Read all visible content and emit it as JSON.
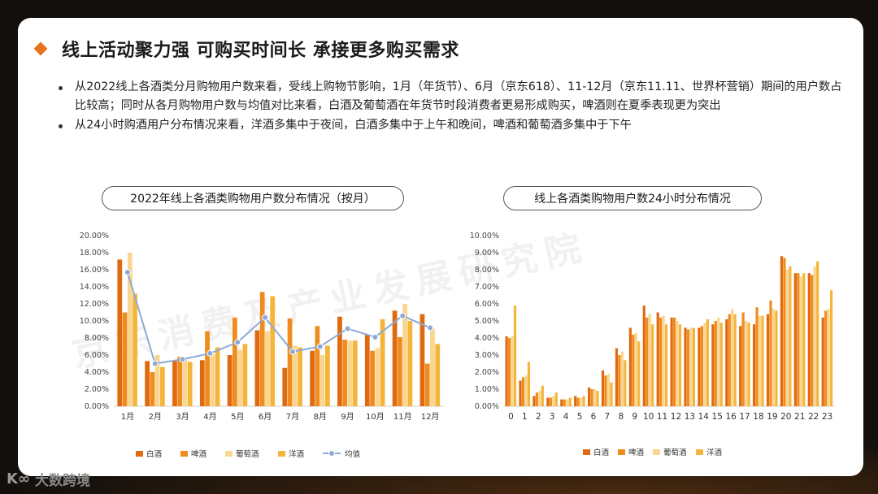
{
  "title": "线上活动聚力强 可购买时间长 承接更多购买需求",
  "bullets": [
    "从2022线上各酒类分月购物用户数来看，受线上购物节影响，1月（年货节）、6月（京东618）、11-12月（京东11.11、世界杯营销）期间的用户数占比较高；同时从各月购物用户数与均值对比来看，白酒及葡萄酒在年货节时段消费者更易形成购买，啤酒则在夏季表现更为突出",
    "从24小时购酒用户分布情况来看，洋酒多集中于夜间，白酒多集中于上午和晚间，啤酒和葡萄酒多集中于下午"
  ],
  "watermark": "京东消费及产业发展研究院",
  "logo": {
    "mark": "K∞",
    "text": "大数跨境"
  },
  "colors": {
    "baijiu": "#e06a10",
    "pijiu": "#f08c1e",
    "putao": "#fad590",
    "yangjiu": "#f5b53b",
    "avg": "#8ea9d8"
  },
  "chart_data": [
    {
      "type": "bar",
      "title": "2022年线上各酒类购物用户数分布情况（按月）",
      "categories": [
        "1月",
        "2月",
        "3月",
        "4月",
        "5月",
        "6月",
        "7月",
        "8月",
        "9月",
        "10月",
        "11月",
        "12月"
      ],
      "ylim": [
        0,
        0.2
      ],
      "yticks": [
        "0.00%",
        "2.00%",
        "4.00%",
        "6.00%",
        "8.00%",
        "10.00%",
        "12.00%",
        "14.00%",
        "16.00%",
        "18.00%",
        "20.00%"
      ],
      "series": [
        {
          "name": "白酒",
          "values": [
            0.172,
            0.053,
            0.053,
            0.054,
            0.06,
            0.089,
            0.045,
            0.065,
            0.105,
            0.084,
            0.112,
            0.108
          ]
        },
        {
          "name": "啤酒",
          "values": [
            0.11,
            0.04,
            0.058,
            0.088,
            0.104,
            0.134,
            0.103,
            0.094,
            0.078,
            0.065,
            0.081,
            0.05
          ]
        },
        {
          "name": "葡萄酒",
          "values": [
            0.18,
            0.06,
            0.056,
            0.061,
            0.066,
            0.088,
            0.071,
            0.06,
            0.077,
            0.068,
            0.12,
            0.091
          ]
        },
        {
          "name": "洋酒",
          "values": [
            0.132,
            0.046,
            0.052,
            0.069,
            0.073,
            0.129,
            0.069,
            0.071,
            0.077,
            0.102,
            0.1,
            0.073
          ]
        }
      ],
      "line": {
        "name": "均值",
        "values": [
          0.157,
          0.05,
          0.055,
          0.062,
          0.075,
          0.104,
          0.064,
          0.07,
          0.091,
          0.081,
          0.106,
          0.092
        ]
      },
      "legend": [
        "白酒",
        "啤酒",
        "葡萄酒",
        "洋酒",
        "均值"
      ],
      "legend_position": "bottom"
    },
    {
      "type": "bar",
      "title": "线上各酒类购物用户数24小时分布情况",
      "categories": [
        "0",
        "1",
        "2",
        "3",
        "4",
        "5",
        "6",
        "7",
        "8",
        "9",
        "10",
        "11",
        "12",
        "13",
        "14",
        "15",
        "16",
        "17",
        "18",
        "19",
        "20",
        "21",
        "22",
        "23"
      ],
      "ylim": [
        0,
        0.1
      ],
      "yticks": [
        "0.00%",
        "1.00%",
        "2.00%",
        "3.00%",
        "4.00%",
        "5.00%",
        "6.00%",
        "7.00%",
        "8.00%",
        "9.00%",
        "10.00%"
      ],
      "series": [
        {
          "name": "白酒",
          "values": [
            0.041,
            0.015,
            0.006,
            0.005,
            0.004,
            0.006,
            0.011,
            0.021,
            0.034,
            0.046,
            0.059,
            0.055,
            0.052,
            0.046,
            0.046,
            0.048,
            0.051,
            0.047,
            0.048,
            0.054,
            0.088,
            0.078,
            0.078,
            0.052
          ]
        },
        {
          "name": "啤酒",
          "values": [
            0.04,
            0.017,
            0.008,
            0.005,
            0.004,
            0.005,
            0.01,
            0.018,
            0.03,
            0.042,
            0.052,
            0.052,
            0.052,
            0.045,
            0.047,
            0.05,
            0.054,
            0.055,
            0.058,
            0.062,
            0.087,
            0.078,
            0.077,
            0.056
          ]
        },
        {
          "name": "葡萄酒",
          "values": [
            0.041,
            0.018,
            0.009,
            0.006,
            0.004,
            0.005,
            0.01,
            0.019,
            0.032,
            0.043,
            0.054,
            0.053,
            0.05,
            0.046,
            0.049,
            0.052,
            0.057,
            0.05,
            0.053,
            0.057,
            0.08,
            0.076,
            0.082,
            0.057
          ]
        },
        {
          "name": "洋酒",
          "values": [
            0.059,
            0.026,
            0.012,
            0.008,
            0.005,
            0.006,
            0.009,
            0.014,
            0.027,
            0.038,
            0.048,
            0.048,
            0.048,
            0.046,
            0.051,
            0.049,
            0.054,
            0.049,
            0.053,
            0.056,
            0.082,
            0.078,
            0.085,
            0.068
          ]
        }
      ],
      "legend": [
        "白酒",
        "啤酒",
        "葡萄酒",
        "洋酒"
      ],
      "legend_position": "bottom"
    }
  ]
}
